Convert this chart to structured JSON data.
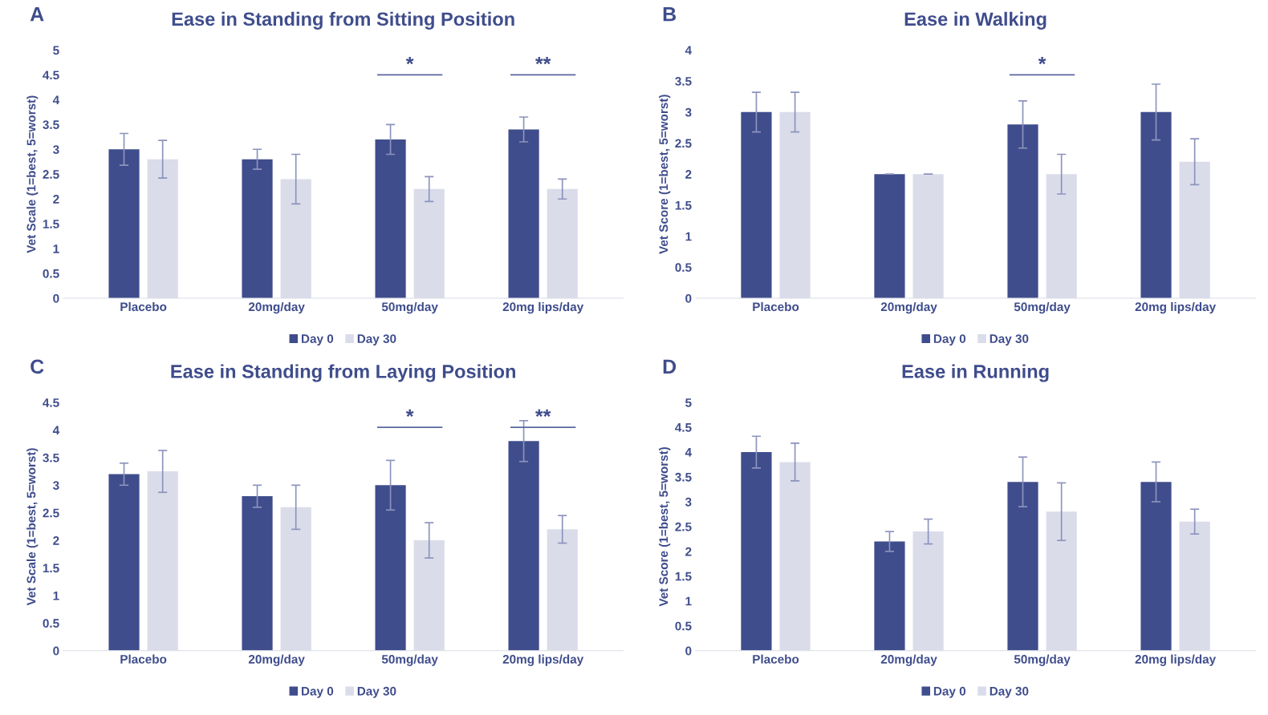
{
  "chart_data": [
    {
      "type": "bar",
      "title": "Ease in Standing from Sitting Position",
      "ylabel": "Vet Scale (1=best, 5=worst)",
      "categories": [
        "Placebo",
        "20mg/day",
        "50mg/day",
        "20mg lips/day"
      ],
      "series": [
        {
          "name": "Day 0",
          "color": "#3f4d8c",
          "values": [
            3,
            2.8,
            3.2,
            3.4
          ],
          "errors": [
            0.32,
            0.2,
            0.3,
            0.25
          ]
        },
        {
          "name": "Day 30",
          "color": "#dadcea",
          "values": [
            2.8,
            2.4,
            2.2,
            2.2
          ],
          "errors": [
            0.38,
            0.5,
            0.25,
            0.2
          ]
        }
      ],
      "ylim": [
        0,
        5
      ],
      "yticks": [
        0,
        0.5,
        1,
        1.5,
        2,
        2.5,
        3,
        3.5,
        4,
        4.5,
        5
      ],
      "grid": false,
      "legend": "bottom",
      "annotations": [
        "A",
        "*",
        "**"
      ]
    },
    {
      "type": "bar",
      "title": "Ease in Walking",
      "ylabel": "Vet Score (1=best, 5=worst)",
      "categories": [
        "Placebo",
        "20mg/day",
        "50mg/day",
        "20mg lips/day"
      ],
      "series": [
        {
          "name": "Day 0",
          "color": "#3f4d8c",
          "values": [
            3,
            2,
            2.8,
            3
          ],
          "errors": [
            0.32,
            0,
            0.38,
            0.45
          ]
        },
        {
          "name": "Day 30",
          "color": "#dadcea",
          "values": [
            3,
            2,
            2,
            2.2
          ],
          "errors": [
            0.32,
            0,
            0.32,
            0.37
          ]
        }
      ],
      "ylim": [
        0,
        4
      ],
      "yticks": [
        0,
        0.5,
        1,
        1.5,
        2,
        2.5,
        3,
        3.5,
        4
      ],
      "grid": false,
      "legend": "bottom",
      "annotations": [
        "B",
        "*"
      ]
    },
    {
      "type": "bar",
      "title": "Ease in Standing from Laying Position",
      "ylabel": "Vet Scale (1=best, 5=worst)",
      "categories": [
        "Placebo",
        "20mg/day",
        "50mg/day",
        "20mg lips/day"
      ],
      "series": [
        {
          "name": "Day 0",
          "color": "#3f4d8c",
          "values": [
            3.2,
            2.8,
            3,
            3.8
          ],
          "errors": [
            0.2,
            0.2,
            0.45,
            0.37
          ]
        },
        {
          "name": "Day 30",
          "color": "#dadcea",
          "values": [
            3.25,
            2.6,
            2,
            2.2
          ],
          "errors": [
            0.38,
            0.4,
            0.32,
            0.25
          ]
        }
      ],
      "ylim": [
        0,
        4.5
      ],
      "yticks": [
        0,
        0.5,
        1,
        1.5,
        2,
        2.5,
        3,
        3.5,
        4,
        4.5
      ],
      "grid": false,
      "legend": "bottom",
      "annotations": [
        "C",
        "*",
        "**"
      ]
    },
    {
      "type": "bar",
      "title": "Ease in Running",
      "ylabel": "Vet Score (1=best, 5=worst)",
      "categories": [
        "Placebo",
        "20mg/day",
        "50mg/day",
        "20mg lips/day"
      ],
      "series": [
        {
          "name": "Day 0",
          "color": "#3f4d8c",
          "values": [
            4,
            2.2,
            3.4,
            3.4
          ],
          "errors": [
            0.32,
            0.2,
            0.5,
            0.4
          ]
        },
        {
          "name": "Day 30",
          "color": "#dadcea",
          "values": [
            3.8,
            2.4,
            2.8,
            2.6
          ],
          "errors": [
            0.38,
            0.25,
            0.58,
            0.25
          ]
        }
      ],
      "ylim": [
        0,
        5
      ],
      "yticks": [
        0,
        0.5,
        1,
        1.5,
        2,
        2.5,
        3,
        3.5,
        4,
        4.5,
        5
      ],
      "grid": false,
      "legend": "bottom",
      "annotations": [
        "D"
      ]
    }
  ]
}
